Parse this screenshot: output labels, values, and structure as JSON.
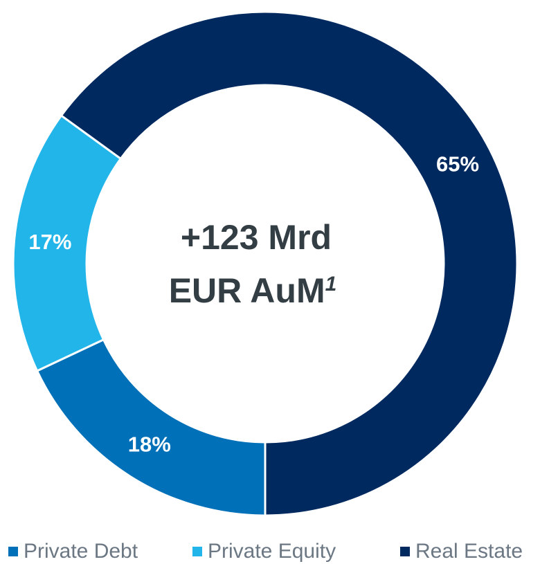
{
  "chart_data": {
    "type": "donut",
    "categories": [
      "Private Debt",
      "Private Equity",
      "Real Estate"
    ],
    "values": [
      18,
      17,
      65
    ],
    "value_labels": [
      "18%",
      "17%",
      "65%"
    ],
    "colors": [
      "#0070b8",
      "#22b5ea",
      "#002960"
    ],
    "center_text": [
      "+123 Mrd",
      "EUR AuM"
    ],
    "center_footnote": "1",
    "legend": "bottom"
  }
}
